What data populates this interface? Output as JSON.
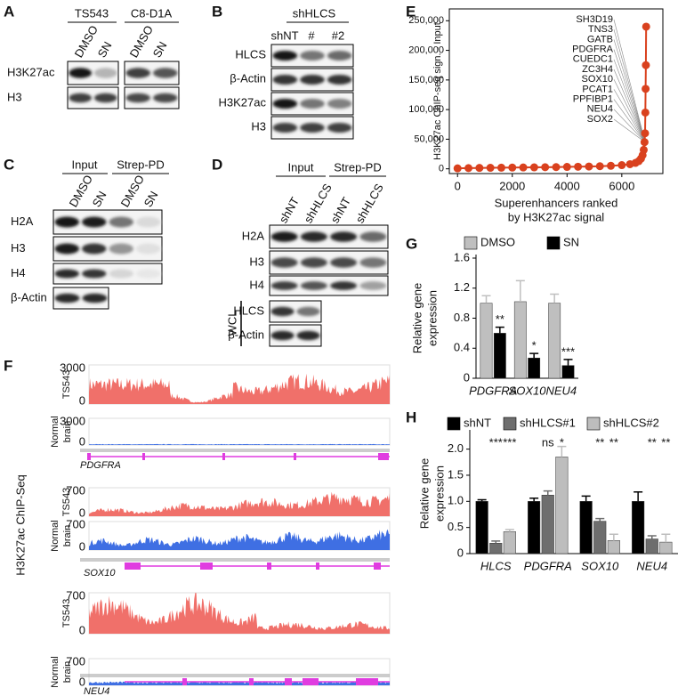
{
  "figure": {
    "A": {
      "label": "A",
      "cell_lines": [
        "TS543",
        "C8-D1A"
      ],
      "lanes": [
        "DMSO",
        "SN",
        "DMSO",
        "SN"
      ],
      "rows": [
        "H3K27ac",
        "H3"
      ]
    },
    "B": {
      "label": "B",
      "group": "shHLCS",
      "lanes": [
        "shNT",
        "#",
        "#2"
      ],
      "rows": [
        "HLCS",
        "β-Actin",
        "H3K27ac",
        "H3"
      ]
    },
    "C": {
      "label": "C",
      "groups": [
        "Input",
        "Strep-PD"
      ],
      "lanes": [
        "DMSO",
        "SN",
        "DMSO",
        "SN"
      ],
      "rows": [
        "H2A",
        "H3",
        "H4",
        "β-Actin"
      ]
    },
    "D": {
      "label": "D",
      "groups": [
        "Input",
        "Strep-PD"
      ],
      "lanes": [
        "shNT",
        "shHLCS",
        "shNT",
        "shHLCS"
      ],
      "rows": [
        "H2A",
        "H3",
        "H4"
      ],
      "wcl": "WCL",
      "wcl_rows": [
        "HLCS",
        "β-Actin"
      ]
    },
    "F": {
      "label": "F",
      "ylabel": "H3K27ac ChIP-Seq",
      "sample": "TS543",
      "normal": [
        "Normal",
        "brain"
      ],
      "loci": [
        {
          "gene": "PDGFRA",
          "ts543_scale": [
            3000,
            0
          ],
          "normal_scale": [
            3000,
            0
          ]
        },
        {
          "gene": "SOX10",
          "ts543_scale": [
            700,
            0
          ],
          "normal_scale": [
            700,
            0
          ]
        },
        {
          "gene": "NEU4",
          "ts543_scale": [
            700,
            0
          ],
          "normal_scale": [
            700,
            0
          ]
        }
      ]
    }
  },
  "chart_data": [
    {
      "panel": "E",
      "type": "scatter",
      "ylabel": "H3K27ac ChIP-seq sign. - Input",
      "xlabel": [
        "Superenhancers ranked",
        "by H3K27ac signal"
      ],
      "color": "#d9411e",
      "x": [
        0,
        400,
        800,
        1200,
        1600,
        2000,
        2400,
        2800,
        3200,
        3600,
        4000,
        4400,
        4800,
        5200,
        5600,
        6000,
        6300,
        6500,
        6620,
        6700,
        6760,
        6800,
        6830,
        6850,
        6860,
        6870,
        6880,
        6890
      ],
      "values": [
        800,
        1200,
        1500,
        1700,
        1900,
        2100,
        2300,
        2500,
        2700,
        2900,
        3200,
        3500,
        3900,
        4400,
        5100,
        6200,
        7800,
        10000,
        13000,
        17000,
        23000,
        32000,
        45000,
        60000,
        95000,
        135000,
        175000,
        240000
      ],
      "annotations": [
        "SH3D19",
        "TNS3",
        "GATB",
        "PDGFRA",
        "CUEDC1",
        "ZC3H4",
        "SOX10",
        "PCAT1",
        "PPFIBP1",
        "NEU4",
        "SOX2"
      ],
      "xlim": [
        -300,
        7500
      ],
      "ylim": [
        -8000,
        270000
      ],
      "xticks": [
        0,
        2000,
        4000,
        6000
      ],
      "yticks": [
        0,
        {
          "value": 50000,
          "label": "50,000"
        },
        {
          "value": 100000,
          "label": "100,000"
        },
        {
          "value": 150000,
          "label": "150,000"
        },
        {
          "value": 200000,
          "label": "200,000"
        },
        {
          "value": 250000,
          "label": "250,000"
        }
      ]
    },
    {
      "panel": "G",
      "type": "bar",
      "ylabel": [
        "Relative gene",
        "expression"
      ],
      "categories": [
        "PDGFRA",
        "SOX10",
        "NEU4"
      ],
      "series": [
        {
          "name": "DMSO",
          "color": "#bfbfbf",
          "values": [
            1.0,
            1.02,
            1.0
          ],
          "errors": [
            0.1,
            0.28,
            0.12
          ]
        },
        {
          "name": "SN",
          "color": "#000000",
          "values": [
            0.6,
            0.27,
            0.17
          ],
          "errors": [
            0.08,
            0.06,
            0.08
          ],
          "significance": [
            "**",
            "*",
            "***"
          ]
        }
      ],
      "ylim": [
        0,
        1.6
      ],
      "yticks": [
        0,
        0.4,
        0.8,
        1.2,
        1.6
      ],
      "legend": "top"
    },
    {
      "panel": "H",
      "type": "bar",
      "ylabel": [
        "Relative gene",
        "expression"
      ],
      "categories": [
        "HLCS",
        "PDGFRA",
        "SOX10",
        "NEU4"
      ],
      "series": [
        {
          "name": "shNT",
          "color": "#000000",
          "values": [
            1.0,
            1.0,
            1.0,
            1.0
          ],
          "errors": [
            0.03,
            0.06,
            0.1,
            0.18
          ]
        },
        {
          "name": "shHLCS#1",
          "color": "#6e6e6e",
          "values": [
            0.2,
            1.12,
            0.62,
            0.28
          ],
          "errors": [
            0.04,
            0.08,
            0.05,
            0.06
          ],
          "significance": [
            "***",
            "ns",
            "**",
            "**"
          ]
        },
        {
          "name": "shHLCS#2",
          "color": "#bdbdbd",
          "values": [
            0.42,
            1.85,
            0.25,
            0.22
          ],
          "errors": [
            0.04,
            0.2,
            0.12,
            0.15
          ],
          "significance": [
            "***",
            "*",
            "**",
            "**"
          ]
        }
      ],
      "ylim": [
        0,
        2.3
      ],
      "yticks": [
        0,
        0.5,
        {
          "value": 1,
          "label": "1.0"
        },
        1.5,
        {
          "value": 2,
          "label": "2.0"
        }
      ],
      "legend": "top"
    }
  ]
}
